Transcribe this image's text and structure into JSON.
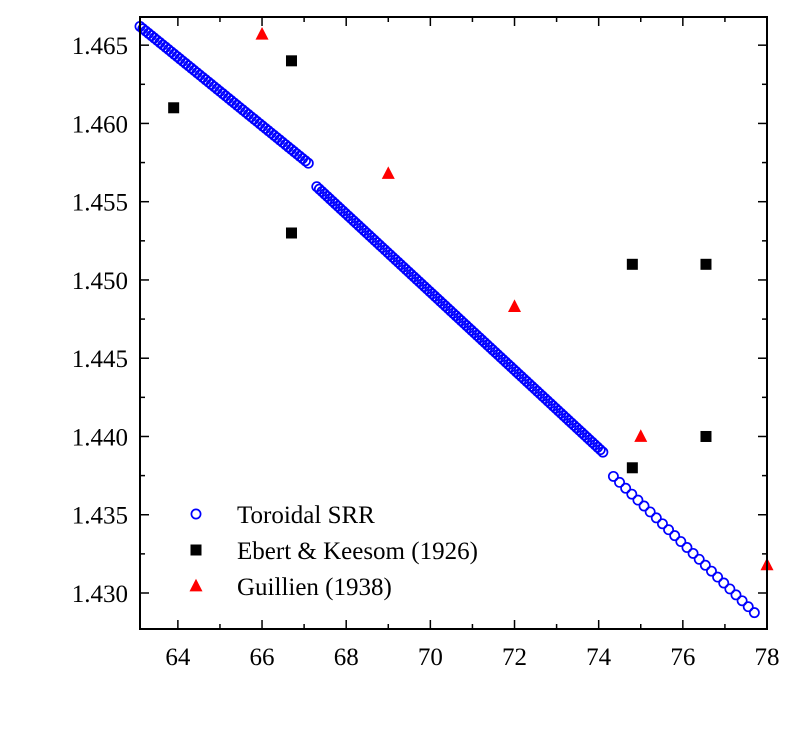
{
  "chart_data": {
    "type": "scatter",
    "title": "",
    "xlabel": "",
    "ylabel": "",
    "xlim": [
      63.1,
      78
    ],
    "ylim": [
      1.4277,
      1.4668
    ],
    "xticks": [
      64,
      66,
      68,
      70,
      72,
      74,
      76,
      78
    ],
    "xtick_labels": [
      "64",
      "66",
      "68",
      "70",
      "72",
      "74",
      "76",
      "78"
    ],
    "yticks": [
      1.43,
      1.435,
      1.44,
      1.445,
      1.45,
      1.455,
      1.46,
      1.465
    ],
    "ytick_labels": [
      "1.430",
      "1.435",
      "1.440",
      "1.445",
      "1.450",
      "1.455",
      "1.460",
      "1.465"
    ],
    "grid": false,
    "legend_position": "bottom-left",
    "series": [
      {
        "name": "Toroidal SRR",
        "marker": "open-circle",
        "color": "#0000ff",
        "line_segments": [
          {
            "x_start": 63.1,
            "x_end": 67.1,
            "n": 60,
            "y_start": 1.4662,
            "slope": -0.002185
          },
          {
            "x_start": 67.3,
            "x_end": 74.1,
            "n": 110,
            "y_start": 1.45596,
            "slope": -0.002494
          },
          {
            "x_start": 74.35,
            "x_end": 77.7,
            "n": 24,
            "y_start": 1.43745,
            "slope": -0.002598
          }
        ]
      },
      {
        "name": "Ebert & Keesom (1926)",
        "marker": "filled-square",
        "color": "#000000",
        "x": [
          63.9,
          66.7,
          66.7,
          74.8,
          74.8,
          76.55,
          76.55
        ],
        "y": [
          1.461,
          1.464,
          1.453,
          1.451,
          1.438,
          1.451,
          1.44
        ]
      },
      {
        "name": "Guillien (1938)",
        "marker": "filled-triangle",
        "color": "#ff0000",
        "x": [
          66.0,
          69.0,
          72.0,
          75.0,
          78.0
        ],
        "y": [
          1.4657,
          1.4568,
          1.4483,
          1.44,
          1.4318
        ]
      }
    ]
  }
}
